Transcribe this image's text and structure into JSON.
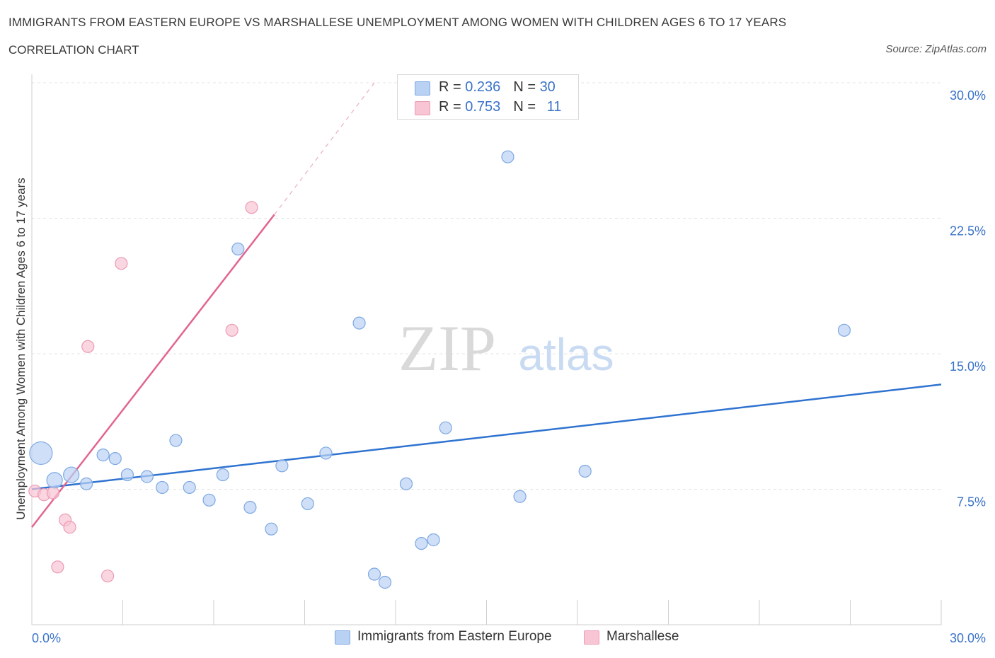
{
  "header": {
    "title": "IMMIGRANTS FROM EASTERN EUROPE VS MARSHALLESE UNEMPLOYMENT AMONG WOMEN WITH CHILDREN AGES 6 TO 17 YEARS",
    "subtitle": "CORRELATION CHART",
    "source": "Source: ZipAtlas.com"
  },
  "watermark": {
    "zip": "ZIP",
    "atlas": "atlas"
  },
  "legend_stats": {
    "blue": {
      "r_label": "R = ",
      "r_value": "0.236",
      "n_label": "N = ",
      "n_value": "30"
    },
    "pink": {
      "r_label": "R = ",
      "r_value": "0.753",
      "n_label": "N = ",
      "n_value": "11"
    }
  },
  "colors": {
    "blue_fill": "#b9d1f3",
    "blue_stroke": "#7ea8e3",
    "blue_line": "#2f73d0",
    "pink_fill": "#f8c5d4",
    "pink_stroke": "#ec9bb4",
    "pink_line": "#e2658f",
    "grid": "#e4e4e4",
    "axis_text": "#3a73c9"
  },
  "chart_data": {
    "type": "scatter",
    "title": "IMMIGRANTS FROM EASTERN EUROPE VS MARSHALLESE UNEMPLOYMENT AMONG WOMEN WITH CHILDREN AGES 6 TO 17 YEARS",
    "xlabel": "",
    "ylabel": "Unemployment Among Women with Children Ages 6 to 17 years",
    "xlim": [
      0,
      30
    ],
    "ylim": [
      0,
      30
    ],
    "x_tick_labels": [
      "0.0%",
      "30.0%"
    ],
    "y_ticks": [
      7.5,
      15,
      22.5,
      30
    ],
    "y_tick_labels": [
      "7.5%",
      "15.0%",
      "22.5%",
      "30.0%"
    ],
    "grid": true,
    "legend_position": "bottom-center",
    "series": [
      {
        "name": "Immigrants from Eastern Europe",
        "color": "blue",
        "R": 0.236,
        "N": 30,
        "points": [
          {
            "x": 0.3,
            "y": 9.5,
            "size": "large"
          },
          {
            "x": 0.75,
            "y": 8.0,
            "size": "medium"
          },
          {
            "x": 1.3,
            "y": 8.3,
            "size": "medium"
          },
          {
            "x": 1.8,
            "y": 7.8
          },
          {
            "x": 2.35,
            "y": 9.4
          },
          {
            "x": 2.75,
            "y": 9.2
          },
          {
            "x": 3.15,
            "y": 8.3
          },
          {
            "x": 3.8,
            "y": 8.2
          },
          {
            "x": 4.3,
            "y": 7.6
          },
          {
            "x": 4.75,
            "y": 10.2
          },
          {
            "x": 5.2,
            "y": 7.6
          },
          {
            "x": 5.85,
            "y": 6.9
          },
          {
            "x": 6.3,
            "y": 8.3
          },
          {
            "x": 6.8,
            "y": 20.8
          },
          {
            "x": 7.2,
            "y": 6.5
          },
          {
            "x": 7.9,
            "y": 5.3
          },
          {
            "x": 8.25,
            "y": 8.8
          },
          {
            "x": 9.1,
            "y": 6.7
          },
          {
            "x": 9.7,
            "y": 9.5
          },
          {
            "x": 10.8,
            "y": 16.7
          },
          {
            "x": 11.3,
            "y": 2.8
          },
          {
            "x": 11.65,
            "y": 2.35
          },
          {
            "x": 12.35,
            "y": 7.8
          },
          {
            "x": 12.85,
            "y": 4.5
          },
          {
            "x": 13.25,
            "y": 4.7
          },
          {
            "x": 13.65,
            "y": 10.9
          },
          {
            "x": 15.7,
            "y": 25.9
          },
          {
            "x": 16.1,
            "y": 7.1
          },
          {
            "x": 18.25,
            "y": 8.5
          },
          {
            "x": 26.8,
            "y": 16.3
          }
        ],
        "trend": {
          "x0": 0,
          "y0": 7.5,
          "x1": 30,
          "y1": 13.3
        }
      },
      {
        "name": "Marshallese",
        "color": "pink",
        "R": 0.753,
        "N": 11,
        "points": [
          {
            "x": 0.1,
            "y": 7.4
          },
          {
            "x": 0.4,
            "y": 7.2
          },
          {
            "x": 0.7,
            "y": 7.3
          },
          {
            "x": 0.85,
            "y": 3.2
          },
          {
            "x": 1.1,
            "y": 5.8
          },
          {
            "x": 1.25,
            "y": 5.4
          },
          {
            "x": 1.85,
            "y": 15.4
          },
          {
            "x": 2.5,
            "y": 2.7
          },
          {
            "x": 2.95,
            "y": 20.0
          },
          {
            "x": 6.6,
            "y": 16.3
          },
          {
            "x": 7.25,
            "y": 23.1
          }
        ],
        "trend": {
          "x0": 0,
          "y0": 5.4,
          "x1": 8.0,
          "y1": 22.7
        },
        "trend_extension": {
          "x0": 8.0,
          "y0": 22.7,
          "x1": 11.3,
          "y1": 30.0
        }
      }
    ]
  },
  "legend_bottom": {
    "blue_label": "Immigrants from Eastern Europe",
    "pink_label": "Marshallese"
  }
}
